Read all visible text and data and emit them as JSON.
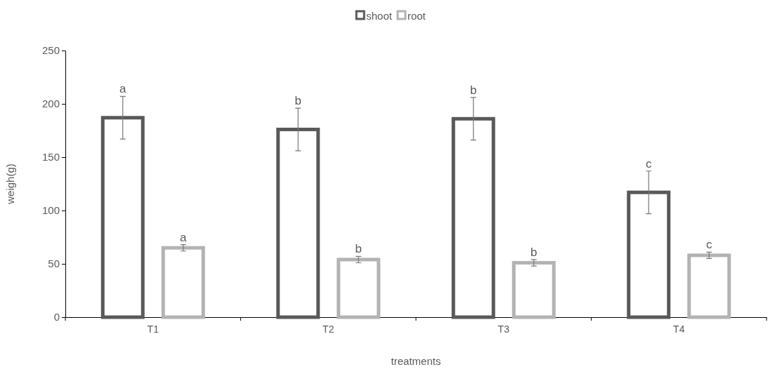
{
  "chart_data": {
    "type": "bar",
    "xlabel": "treatments",
    "ylabel": "weigh(g)",
    "categories": [
      "T1",
      "T2",
      "T3",
      "T4"
    ],
    "series": [
      {
        "name": "shoot",
        "color": "#595959",
        "values": [
          187,
          176,
          186,
          117
        ],
        "errors": [
          20,
          20,
          20,
          20
        ]
      },
      {
        "name": "root",
        "color": "#b3b3b3",
        "values": [
          65,
          54,
          51,
          58
        ],
        "errors": [
          3,
          3,
          3,
          3
        ]
      }
    ],
    "ylim": [
      0,
      250
    ],
    "yticks": [
      0,
      50,
      100,
      150,
      200,
      250
    ],
    "grid": false,
    "legend": "top",
    "annotations": [
      "a",
      "b",
      "b",
      "c",
      "a",
      "b",
      "b",
      "c"
    ]
  }
}
